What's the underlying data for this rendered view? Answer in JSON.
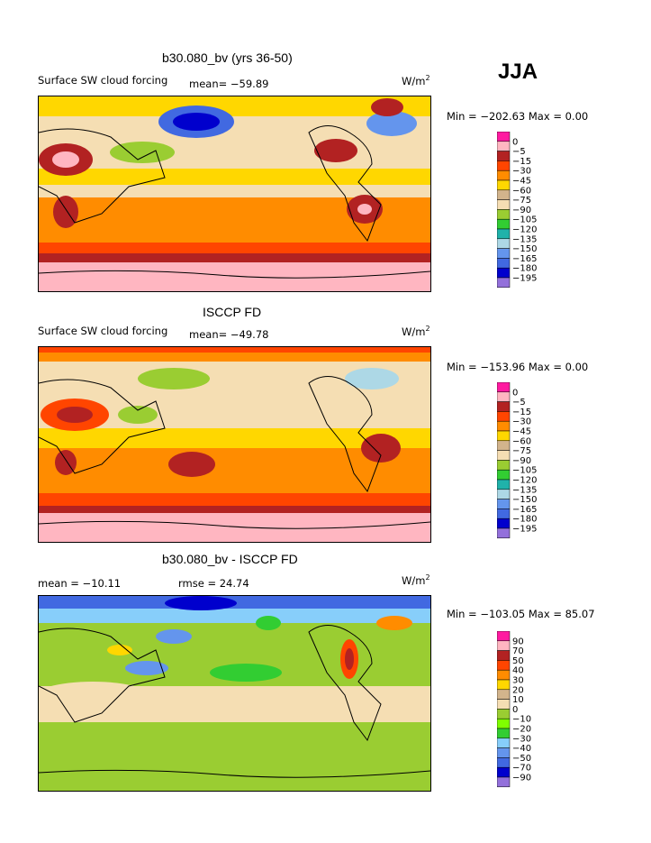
{
  "season": "JJA",
  "chart_data": [
    {
      "type": "heatmap",
      "title": "b30.080_bv (yrs 36-50)",
      "left_label": "Surface SW cloud forcing",
      "mean_text": "mean= −59.89",
      "units": "W/m",
      "units_exp": "2",
      "stats_text": "Min = −202.63 Max =    0.00",
      "legend_levels": [
        "0",
        "−5",
        "−15",
        "−30",
        "−45",
        "−60",
        "−75",
        "−90",
        "−105",
        "−120",
        "−135",
        "−150",
        "−165",
        "−180",
        "−195"
      ],
      "legend_colors": [
        "#ff1aa0",
        "#ffb6c1",
        "#b22222",
        "#ff4500",
        "#ff8c00",
        "#ffd700",
        "#d2b48c",
        "#f5deb3",
        "#9acd32",
        "#32cd32",
        "#20b2aa",
        "#add8e6",
        "#6495ed",
        "#4169e1",
        "#0000cd",
        "#9370db"
      ]
    },
    {
      "type": "heatmap",
      "title": "ISCCP FD",
      "left_label": "Surface SW cloud forcing",
      "mean_text": "mean= −49.78",
      "units": "W/m",
      "units_exp": "2",
      "stats_text": "Min = −153.96 Max =    0.00",
      "legend_levels": [
        "0",
        "−5",
        "−15",
        "−30",
        "−45",
        "−60",
        "−75",
        "−90",
        "−105",
        "−120",
        "−135",
        "−150",
        "−165",
        "−180",
        "−195"
      ],
      "legend_colors": [
        "#ff1aa0",
        "#ffb6c1",
        "#b22222",
        "#ff4500",
        "#ff8c00",
        "#ffd700",
        "#d2b48c",
        "#f5deb3",
        "#9acd32",
        "#32cd32",
        "#20b2aa",
        "#add8e6",
        "#6495ed",
        "#4169e1",
        "#0000cd",
        "#9370db"
      ]
    },
    {
      "type": "heatmap",
      "title": "b30.080_bv - ISCCP FD",
      "mean_text": "mean = −10.11",
      "rmse_text": "rmse =  24.74",
      "units": "W/m",
      "units_exp": "2",
      "stats_text": "Min = −103.05 Max =   85.07",
      "legend_levels": [
        "90",
        "70",
        "50",
        "40",
        "30",
        "20",
        "10",
        "0",
        "−10",
        "−20",
        "−30",
        "−40",
        "−50",
        "−70",
        "−90"
      ],
      "legend_colors": [
        "#ff1aa0",
        "#ffb6c1",
        "#b22222",
        "#ff4500",
        "#ff8c00",
        "#ffd700",
        "#d2b48c",
        "#f5deb3",
        "#9acd32",
        "#7fff00",
        "#32cd32",
        "#87cefa",
        "#6495ed",
        "#4169e1",
        "#0000cd",
        "#9370db"
      ]
    }
  ]
}
